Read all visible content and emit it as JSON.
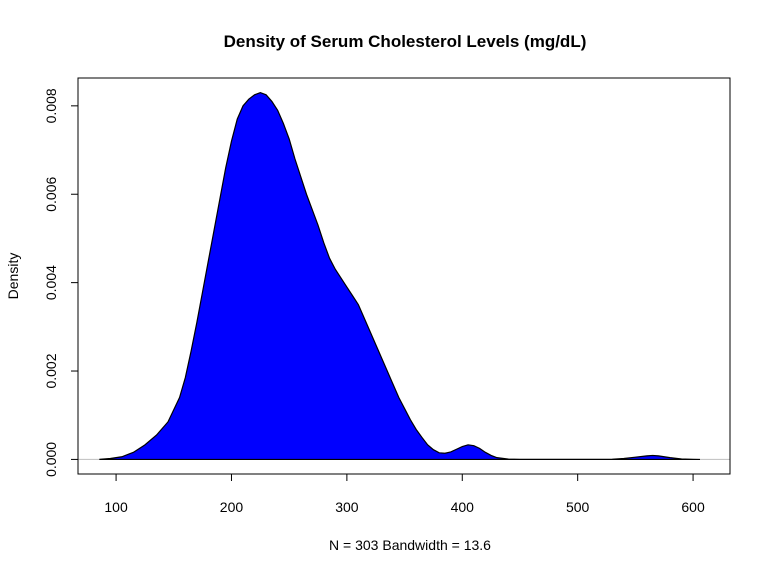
{
  "chart_data": {
    "type": "area",
    "title": "Density of Serum Cholesterol Levels (mg/dL)",
    "xlabel": "N = 303   Bandwidth = 13.6",
    "ylabel": "Density",
    "xlim": [
      67,
      632
    ],
    "ylim": [
      -0.00033,
      0.00863
    ],
    "x_ticks": [
      100,
      200,
      300,
      400,
      500,
      600
    ],
    "y_ticks": [
      0.0,
      0.002,
      0.004,
      0.006,
      0.008
    ],
    "y_tick_labels": [
      "0.000",
      "0.002",
      "0.004",
      "0.006",
      "0.008"
    ],
    "fill_color": "#0000ff",
    "line_color": "#000000",
    "grid": false,
    "series": [
      {
        "x": [
          86,
          95,
          105,
          115,
          125,
          135,
          145,
          155,
          160,
          165,
          170,
          175,
          180,
          185,
          190,
          195,
          200,
          205,
          210,
          215,
          220,
          225,
          230,
          235,
          240,
          245,
          250,
          255,
          260,
          265,
          270,
          275,
          280,
          285,
          290,
          295,
          300,
          305,
          310,
          315,
          320,
          325,
          330,
          335,
          340,
          345,
          350,
          355,
          360,
          365,
          370,
          375,
          380,
          385,
          390,
          395,
          400,
          405,
          410,
          415,
          420,
          425,
          430,
          440,
          450,
          460,
          470,
          480,
          490,
          500,
          510,
          520,
          530,
          540,
          550,
          560,
          565,
          570,
          580,
          590,
          600,
          606
        ],
        "y": [
          3e-06,
          2e-05,
          6e-05,
          0.00016,
          0.00033,
          0.00055,
          0.00085,
          0.0014,
          0.00185,
          0.00245,
          0.0031,
          0.0038,
          0.0045,
          0.0052,
          0.0059,
          0.0066,
          0.0072,
          0.0077,
          0.008,
          0.00815,
          0.00825,
          0.0083,
          0.00825,
          0.0081,
          0.0079,
          0.0076,
          0.00725,
          0.0068,
          0.0064,
          0.006,
          0.00565,
          0.0053,
          0.0049,
          0.00455,
          0.0043,
          0.0041,
          0.0039,
          0.0037,
          0.0035,
          0.0032,
          0.0029,
          0.0026,
          0.0023,
          0.002,
          0.0017,
          0.0014,
          0.00115,
          0.0009,
          0.00068,
          0.0005,
          0.00033,
          0.00022,
          0.00015,
          0.00014,
          0.00017,
          0.00023,
          0.00029,
          0.00033,
          0.00031,
          0.00025,
          0.00016,
          9e-05,
          4e-05,
          8e-06,
          2e-06,
          1e-06,
          1e-06,
          1e-06,
          1e-06,
          1e-06,
          1e-06,
          2e-06,
          5e-06,
          2e-05,
          5e-05,
          8e-05,
          9e-05,
          8e-05,
          4e-05,
          1e-05,
          2e-06,
          0.0
        ]
      }
    ]
  }
}
